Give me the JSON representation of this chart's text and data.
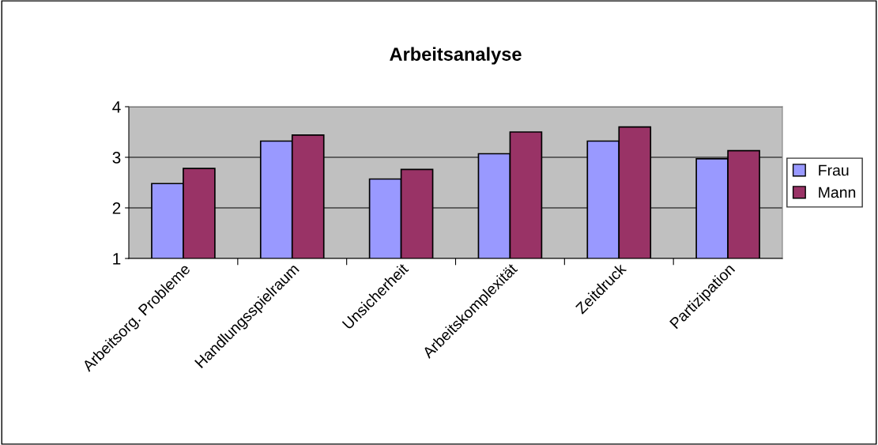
{
  "chart_data": {
    "type": "bar",
    "title": "Arbeitsanalyse",
    "categories": [
      "Arbeitsorg. Probleme",
      "Handlungsspielraum",
      "Unsicherheit",
      "Arbeitskomplexität",
      "Zeitdruck",
      "Partizipation"
    ],
    "series": [
      {
        "name": "Frau",
        "color": "#9999ff",
        "values": [
          2.48,
          3.32,
          2.57,
          3.07,
          3.32,
          2.97
        ]
      },
      {
        "name": "Mann",
        "color": "#993366",
        "values": [
          2.78,
          3.44,
          2.76,
          3.5,
          3.6,
          3.13
        ]
      }
    ],
    "ylim": [
      1,
      4
    ],
    "yticks": [
      1,
      2,
      3,
      4
    ],
    "grid": "y",
    "legend": "right"
  }
}
